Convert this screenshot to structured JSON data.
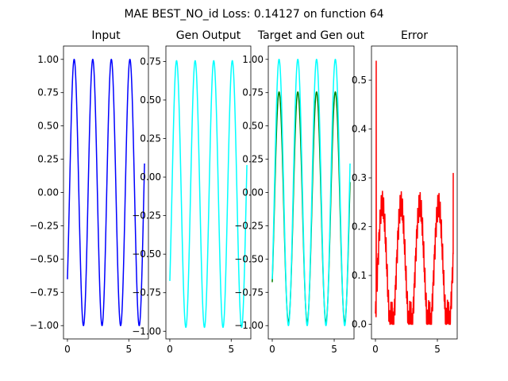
{
  "figure": {
    "suptitle": "MAE BEST_NO_id Loss: 0.14127 on function 64"
  },
  "chart_data": [
    {
      "type": "line",
      "title": "Input",
      "xlim": [
        -0.32,
        6.6
      ],
      "ylim": [
        -1.1,
        1.1
      ],
      "xticks": [
        0,
        5
      ],
      "xtick_labels": [
        "0",
        "5"
      ],
      "yticks": [
        -1.0,
        -0.75,
        -0.5,
        -0.25,
        0.0,
        0.25,
        0.5,
        0.75,
        1.0
      ],
      "ytick_labels": [
        "−1.00",
        "−0.75",
        "−0.50",
        "−0.25",
        "0.00",
        "0.25",
        "0.50",
        "0.75",
        "1.00"
      ],
      "series": [
        {
          "color": "#0000ff",
          "fn": "sin",
          "amp": 1.0,
          "freq": 4.15,
          "phase": -0.71,
          "offset": 0.0,
          "x_range": [
            0,
            6.28
          ]
        }
      ]
    },
    {
      "type": "line",
      "title": "Gen Output",
      "xlim": [
        -0.32,
        6.6
      ],
      "ylim": [
        -1.05,
        0.85
      ],
      "xticks": [
        0,
        5
      ],
      "xtick_labels": [
        "0",
        "5"
      ],
      "yticks": [
        -1.0,
        -0.75,
        -0.5,
        -0.25,
        0.0,
        0.25,
        0.5,
        0.75
      ],
      "ytick_labels": [
        "−1.00",
        "−0.75",
        "−0.50",
        "−0.25",
        "0.00",
        "0.25",
        "0.50",
        "0.75"
      ],
      "series": [
        {
          "color": "#00ffff",
          "fn": "sin",
          "amp": 0.865,
          "freq": 4.15,
          "phase": -0.71,
          "offset": -0.11,
          "x_range": [
            0,
            6.28
          ]
        }
      ]
    },
    {
      "type": "line",
      "title": "Target and Gen out",
      "xlim": [
        -0.32,
        6.6
      ],
      "ylim": [
        -1.1,
        1.1
      ],
      "xticks": [
        0,
        5
      ],
      "xtick_labels": [
        "0",
        "5"
      ],
      "yticks": [
        -1.0,
        -0.75,
        -0.5,
        -0.25,
        0.0,
        0.25,
        0.5,
        0.75,
        1.0
      ],
      "ytick_labels": [
        "−1.00",
        "−0.75",
        "−0.50",
        "−0.25",
        "0.00",
        "0.25",
        "0.50",
        "0.75",
        "1.00"
      ],
      "series": [
        {
          "color": "#008000",
          "fn": "sin",
          "amp": 0.865,
          "freq": 4.15,
          "phase": -0.71,
          "offset": -0.11,
          "x_range": [
            0,
            6.28
          ]
        },
        {
          "color": "#00ffff",
          "fn": "sin",
          "amp": 1.0,
          "freq": 4.15,
          "phase": -0.71,
          "offset": 0.0,
          "x_range": [
            0,
            6.28
          ]
        }
      ]
    },
    {
      "type": "line",
      "title": "Error",
      "xlim": [
        -0.32,
        6.6
      ],
      "ylim": [
        -0.03,
        0.57
      ],
      "xticks": [
        0,
        5
      ],
      "xtick_labels": [
        "0",
        "5"
      ],
      "yticks": [
        0.0,
        0.1,
        0.2,
        0.3,
        0.4,
        0.5
      ],
      "ytick_labels": [
        "0.0",
        "0.1",
        "0.2",
        "0.3",
        "0.4",
        "0.5"
      ],
      "series": [
        {
          "color": "#ff0000",
          "fn": "abs_error",
          "x_range": [
            0,
            6.28
          ],
          "spikes": [
            [
              0.06,
              0.54
            ],
            [
              6.28,
              0.31
            ]
          ]
        }
      ]
    }
  ]
}
